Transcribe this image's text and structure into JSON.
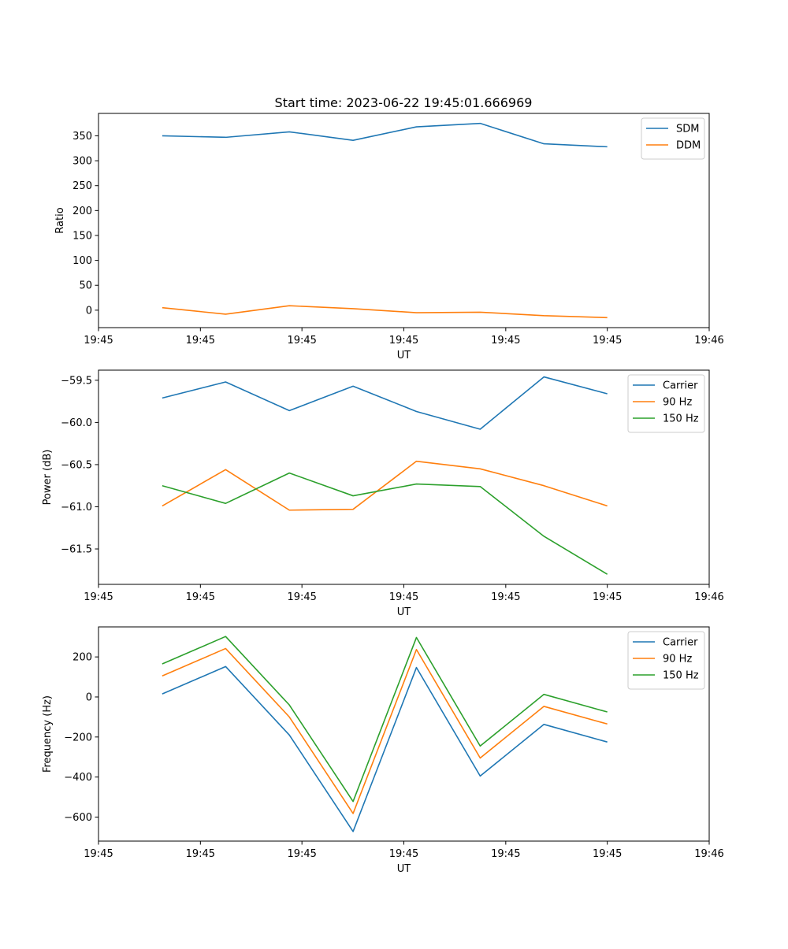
{
  "figure": {
    "title": "Start time: 2023-06-22 19:45:01.666969"
  },
  "chart_data": [
    {
      "type": "line",
      "title": "Start time: 2023-06-22 19:45:01.666969",
      "xlabel": "UT",
      "ylabel": "Ratio",
      "x": [
        1.67,
        3.33,
        5.0,
        6.67,
        8.33,
        10.0,
        11.67,
        13.33
      ],
      "xlim": [
        0,
        16
      ],
      "x_ticks": [
        0,
        2.67,
        5.33,
        8.0,
        10.67,
        13.33,
        16
      ],
      "x_tick_labels": [
        "19:45",
        "19:45",
        "19:45",
        "19:45",
        "19:45",
        "19:45",
        "19:46"
      ],
      "ylim": [
        -35,
        395
      ],
      "y_ticks": [
        0,
        50,
        100,
        150,
        200,
        250,
        300,
        350
      ],
      "y_tick_labels": [
        "0",
        "50",
        "100",
        "150",
        "200",
        "250",
        "300",
        "350"
      ],
      "legend": "top-right",
      "grid": false,
      "series": [
        {
          "name": "SDM",
          "color": "#1f77b4",
          "values": [
            350,
            347,
            358,
            341,
            368,
            375,
            334,
            328
          ]
        },
        {
          "name": "DDM",
          "color": "#ff7f0e",
          "values": [
            5,
            -8,
            9,
            3,
            -5,
            -4,
            -11,
            -15
          ]
        }
      ]
    },
    {
      "type": "line",
      "title": "",
      "xlabel": "UT",
      "ylabel": "Power (dB)",
      "x": [
        1.67,
        3.33,
        5.0,
        6.67,
        8.33,
        10.0,
        11.67,
        13.33
      ],
      "xlim": [
        0,
        16
      ],
      "x_ticks": [
        0,
        2.67,
        5.33,
        8.0,
        10.67,
        13.33,
        16
      ],
      "x_tick_labels": [
        "19:45",
        "19:45",
        "19:45",
        "19:45",
        "19:45",
        "19:45",
        "19:46"
      ],
      "ylim": [
        -61.92,
        -59.38
      ],
      "y_ticks": [
        -59.5,
        -60.0,
        -60.5,
        -61.0,
        -61.5
      ],
      "y_tick_labels": [
        "−59.5",
        "−60.0",
        "−60.5",
        "−61.0",
        "−61.5"
      ],
      "legend": "top-right",
      "grid": false,
      "series": [
        {
          "name": "Carrier",
          "color": "#1f77b4",
          "values": [
            -59.71,
            -59.52,
            -59.86,
            -59.57,
            -59.87,
            -60.08,
            -59.46,
            -59.66
          ]
        },
        {
          "name": "90 Hz",
          "color": "#ff7f0e",
          "values": [
            -60.99,
            -60.56,
            -61.04,
            -61.03,
            -60.46,
            -60.55,
            -60.75,
            -60.99
          ]
        },
        {
          "name": "150 Hz",
          "color": "#2ca02c",
          "values": [
            -60.75,
            -60.96,
            -60.6,
            -60.87,
            -60.73,
            -60.76,
            -61.35,
            -61.8
          ]
        }
      ]
    },
    {
      "type": "line",
      "title": "",
      "xlabel": "UT",
      "ylabel": "Frequency (Hz)",
      "x": [
        1.67,
        3.33,
        5.0,
        6.67,
        8.33,
        10.0,
        11.67,
        13.33
      ],
      "xlim": [
        0,
        16
      ],
      "x_ticks": [
        0,
        2.67,
        5.33,
        8.0,
        10.67,
        13.33,
        16
      ],
      "x_tick_labels": [
        "19:45",
        "19:45",
        "19:45",
        "19:45",
        "19:45",
        "19:45",
        "19:46"
      ],
      "ylim": [
        -720,
        350
      ],
      "y_ticks": [
        200,
        0,
        -200,
        -400,
        -600
      ],
      "y_tick_labels": [
        "200",
        "0",
        "−200",
        "−400",
        "−600"
      ],
      "legend": "top-right",
      "grid": false,
      "series": [
        {
          "name": "Carrier",
          "color": "#1f77b4",
          "values": [
            15,
            152,
            -190,
            -672,
            147,
            -395,
            -137,
            -225
          ]
        },
        {
          "name": "90 Hz",
          "color": "#ff7f0e",
          "values": [
            105,
            242,
            -100,
            -582,
            237,
            -305,
            -47,
            -135
          ]
        },
        {
          "name": "150 Hz",
          "color": "#2ca02c",
          "values": [
            165,
            302,
            -40,
            -522,
            297,
            -245,
            13,
            -75
          ]
        }
      ]
    }
  ]
}
